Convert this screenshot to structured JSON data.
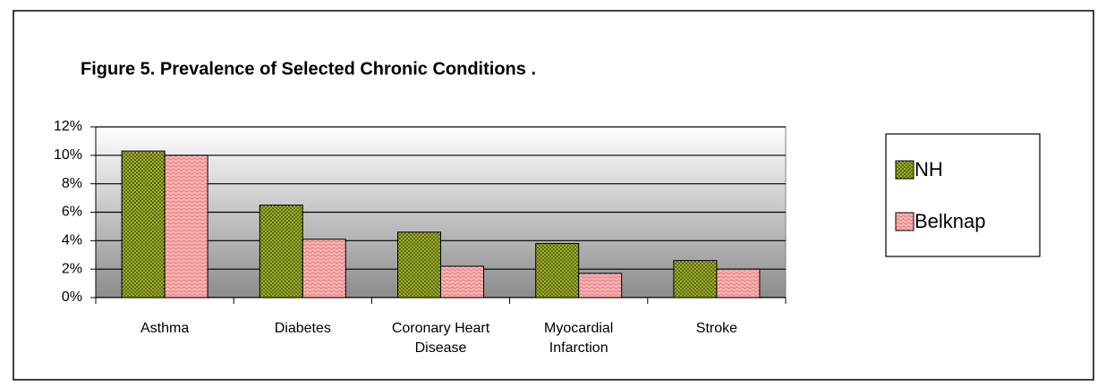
{
  "chart_data": {
    "type": "bar",
    "title": "Figure 5.  Prevalence of Selected Chronic Conditions .",
    "categories": [
      "Asthma",
      "Diabetes",
      "Coronary Heart Disease",
      "Myocardial Infarction",
      "Stroke"
    ],
    "series": [
      {
        "name": "NH",
        "color": "#8a9a1c",
        "values": [
          10.3,
          6.5,
          4.6,
          3.8,
          2.6
        ]
      },
      {
        "name": "Belknap",
        "color": "#f4a0a0",
        "values": [
          10.0,
          4.1,
          2.2,
          1.7,
          2.0
        ]
      }
    ],
    "ylim": [
      0,
      12
    ],
    "yticks": [
      {
        "value": 0,
        "label": "0%"
      },
      {
        "value": 2,
        "label": "2%"
      },
      {
        "value": 4,
        "label": "4%"
      },
      {
        "value": 6,
        "label": "6%"
      },
      {
        "value": 8,
        "label": "8%"
      },
      {
        "value": 10,
        "label": "10%"
      },
      {
        "value": 12,
        "label": "12%"
      }
    ],
    "grid": true,
    "legend": "right"
  }
}
